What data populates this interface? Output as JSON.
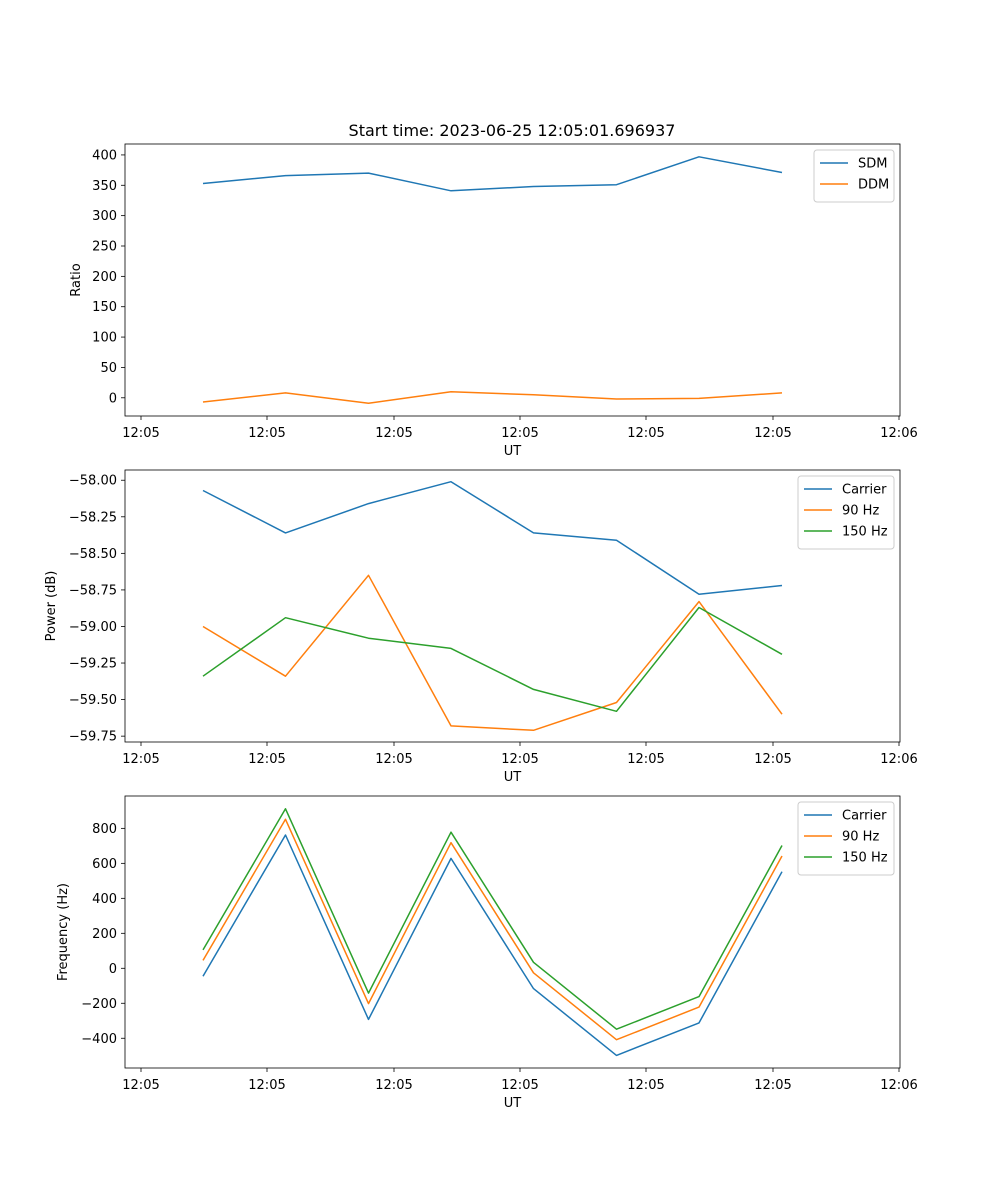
{
  "title": "Start time: 2023-06-25 12:05:01.696937",
  "colors": {
    "blue": "#1f77b4",
    "orange": "#ff7f0e",
    "green": "#2ca02c"
  },
  "chart_data": [
    {
      "type": "line",
      "xlabel": "UT",
      "ylabel": "Ratio",
      "x_tick_labels": [
        "12:05",
        "12:05",
        "12:05",
        "12:05",
        "12:05",
        "12:05",
        "12:06"
      ],
      "y_ticks": [
        "0",
        "50",
        "100",
        "150",
        "200",
        "250",
        "300",
        "350",
        "400"
      ],
      "ylim": [
        -30,
        418
      ],
      "legend_position": "top-right",
      "series": [
        {
          "name": "SDM",
          "color": "#1f77b4",
          "values": [
            353,
            366,
            370,
            341,
            348,
            351,
            397,
            371
          ]
        },
        {
          "name": "DDM",
          "color": "#ff7f0e",
          "values": [
            -7,
            8,
            -9,
            10,
            5,
            -2,
            -1,
            8
          ]
        }
      ]
    },
    {
      "type": "line",
      "xlabel": "UT",
      "ylabel": "Power (dB)",
      "x_tick_labels": [
        "12:05",
        "12:05",
        "12:05",
        "12:05",
        "12:05",
        "12:05",
        "12:06"
      ],
      "y_ticks": [
        "−59.75",
        "−59.50",
        "−59.25",
        "−59.00",
        "−58.75",
        "−58.50",
        "−58.25",
        "−58.00"
      ],
      "ylim": [
        -59.79,
        -57.93
      ],
      "legend_position": "top-right",
      "series": [
        {
          "name": "Carrier",
          "color": "#1f77b4",
          "values": [
            -58.07,
            -58.36,
            -58.16,
            -58.01,
            -58.36,
            -58.41,
            -58.78,
            -58.72
          ]
        },
        {
          "name": "90 Hz",
          "color": "#ff7f0e",
          "values": [
            -59.0,
            -59.34,
            -58.65,
            -59.68,
            -59.71,
            -59.52,
            -58.83,
            -59.6
          ]
        },
        {
          "name": "150 Hz",
          "color": "#2ca02c",
          "values": [
            -59.34,
            -58.94,
            -59.08,
            -59.15,
            -59.43,
            -59.58,
            -58.87,
            -59.19
          ]
        }
      ]
    },
    {
      "type": "line",
      "xlabel": "UT",
      "ylabel": "Frequency (Hz)",
      "x_tick_labels": [
        "12:05",
        "12:05",
        "12:05",
        "12:05",
        "12:05",
        "12:05",
        "12:06"
      ],
      "y_ticks": [
        "−400",
        "−200",
        "0",
        "200",
        "400",
        "600",
        "800"
      ],
      "ylim": [
        -570,
        985
      ],
      "legend_position": "top-right",
      "series": [
        {
          "name": "Carrier",
          "color": "#1f77b4",
          "values": [
            -45,
            762,
            -292,
            628,
            -116,
            -498,
            -312,
            552
          ]
        },
        {
          "name": "90 Hz",
          "color": "#ff7f0e",
          "values": [
            45,
            852,
            -202,
            718,
            -26,
            -408,
            -222,
            642
          ]
        },
        {
          "name": "150 Hz",
          "color": "#2ca02c",
          "values": [
            105,
            912,
            -142,
            778,
            34,
            -348,
            -162,
            702
          ]
        }
      ]
    }
  ]
}
